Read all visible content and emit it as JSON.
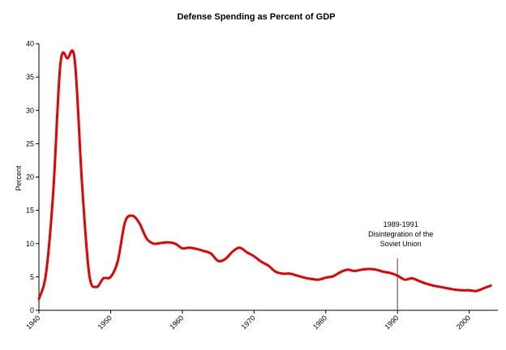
{
  "chart_data": {
    "type": "line",
    "title": "Defense Spending as Percent of GDP",
    "xlabel": "",
    "ylabel": "Percent",
    "xlim": [
      1940,
      2004
    ],
    "ylim": [
      0,
      40
    ],
    "y_ticks": [
      0,
      5,
      10,
      15,
      20,
      25,
      30,
      35,
      40
    ],
    "x_ticks": [
      "1940",
      "1950",
      "1960",
      "1970",
      "1980",
      "1990",
      "2000"
    ],
    "grid": false,
    "legend": "none",
    "series": [
      {
        "color": "#e60000",
        "x": [
          1940,
          1941,
          1942,
          1943,
          1944,
          1945,
          1946,
          1947,
          1948,
          1949,
          1950,
          1951,
          1952,
          1953,
          1954,
          1955,
          1956,
          1957,
          1958,
          1959,
          1960,
          1961,
          1962,
          1963,
          1964,
          1965,
          1966,
          1967,
          1968,
          1969,
          1970,
          1971,
          1972,
          1973,
          1974,
          1975,
          1976,
          1977,
          1978,
          1979,
          1980,
          1981,
          1982,
          1983,
          1984,
          1985,
          1986,
          1987,
          1988,
          1989,
          1990,
          1991,
          1992,
          1993,
          1994,
          1995,
          1996,
          1997,
          1998,
          1999,
          2000,
          2001,
          2002,
          2003
        ],
        "values": [
          1.7,
          5.6,
          17.8,
          37.0,
          37.8,
          37.5,
          19.2,
          5.5,
          3.5,
          4.8,
          5.0,
          7.4,
          13.2,
          14.2,
          13.1,
          10.8,
          10.0,
          10.1,
          10.2,
          10.0,
          9.3,
          9.4,
          9.2,
          8.9,
          8.5,
          7.4,
          7.7,
          8.8,
          9.4,
          8.7,
          8.1,
          7.3,
          6.7,
          5.8,
          5.5,
          5.5,
          5.2,
          4.9,
          4.7,
          4.6,
          4.9,
          5.1,
          5.7,
          6.1,
          5.9,
          6.1,
          6.2,
          6.1,
          5.8,
          5.6,
          5.2,
          4.6,
          4.8,
          4.4,
          4.0,
          3.7,
          3.5,
          3.3,
          3.1,
          3.0,
          3.0,
          2.9,
          3.3,
          3.7
        ]
      }
    ],
    "annotations": [
      {
        "x": 1990,
        "marker_top": 7.8,
        "lines": [
          "1989-1991",
          "Disintegration of the",
          "Soviet Union"
        ]
      }
    ]
  }
}
